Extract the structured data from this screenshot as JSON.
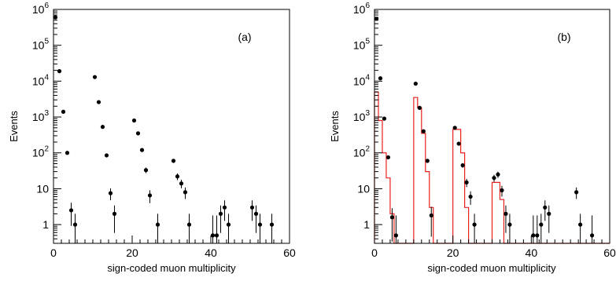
{
  "chart_data": [
    {
      "type": "scatter",
      "panel_label": "(a)",
      "xlabel": "sign-coded muon multiplicity",
      "ylabel": "Events",
      "xlim": [
        0,
        60
      ],
      "ylim": [
        0.3,
        1000000
      ],
      "yscale": "log",
      "x_ticks": [
        "0",
        "20",
        "40",
        "60"
      ],
      "y_ticks": [
        {
          "base": "1",
          "exp": ""
        },
        {
          "base": "10",
          "exp": ""
        },
        {
          "base": "10",
          "exp": "2"
        },
        {
          "base": "10",
          "exp": "3"
        },
        {
          "base": "10",
          "exp": "4"
        },
        {
          "base": "10",
          "exp": "5"
        },
        {
          "base": "10",
          "exp": "6"
        }
      ],
      "points_color": "#000000",
      "points": [
        {
          "x": 0.5,
          "y": 600000
        },
        {
          "x": 1.5,
          "y": 19000
        },
        {
          "x": 2.5,
          "y": 1400
        },
        {
          "x": 3.5,
          "y": 100
        },
        {
          "x": 4.5,
          "y": 2.5
        },
        {
          "x": 5.5,
          "y": 1
        },
        {
          "x": 10.5,
          "y": 13000
        },
        {
          "x": 11.5,
          "y": 2600
        },
        {
          "x": 12.5,
          "y": 530
        },
        {
          "x": 13.5,
          "y": 85
        },
        {
          "x": 14.5,
          "y": 7.5
        },
        {
          "x": 15.5,
          "y": 2
        },
        {
          "x": 20.5,
          "y": 800
        },
        {
          "x": 21.5,
          "y": 350
        },
        {
          "x": 22.5,
          "y": 120
        },
        {
          "x": 23.5,
          "y": 33
        },
        {
          "x": 24.5,
          "y": 6.5
        },
        {
          "x": 26.5,
          "y": 1
        },
        {
          "x": 30.5,
          "y": 60
        },
        {
          "x": 31.5,
          "y": 22
        },
        {
          "x": 32.5,
          "y": 14
        },
        {
          "x": 33.5,
          "y": 8
        },
        {
          "x": 34.5,
          "y": 1
        },
        {
          "x": 40.5,
          "y": 0.5
        },
        {
          "x": 41.5,
          "y": 0.5
        },
        {
          "x": 42.5,
          "y": 2
        },
        {
          "x": 43.5,
          "y": 3
        },
        {
          "x": 44.5,
          "y": 1
        },
        {
          "x": 50.5,
          "y": 3
        },
        {
          "x": 51.5,
          "y": 2
        },
        {
          "x": 52.5,
          "y": 1
        },
        {
          "x": 55.5,
          "y": 1
        }
      ]
    },
    {
      "type": "scatter",
      "panel_label": "(b)",
      "xlabel": "sign-coded muon multiplicity",
      "ylabel": "Events",
      "xlim": [
        0,
        60
      ],
      "ylim": [
        0.3,
        1000000
      ],
      "yscale": "log",
      "x_ticks": [
        "0",
        "20",
        "40",
        "60"
      ],
      "y_ticks": [
        {
          "base": "1",
          "exp": ""
        },
        {
          "base": "10",
          "exp": ""
        },
        {
          "base": "10",
          "exp": "2"
        },
        {
          "base": "10",
          "exp": "3"
        },
        {
          "base": "10",
          "exp": "4"
        },
        {
          "base": "10",
          "exp": "5"
        },
        {
          "base": "10",
          "exp": "6"
        }
      ],
      "points_color": "#000000",
      "histogram_color": "#e8201c",
      "points": [
        {
          "x": 0.5,
          "y": 550000
        },
        {
          "x": 1.5,
          "y": 12000
        },
        {
          "x": 2.5,
          "y": 900
        },
        {
          "x": 3.5,
          "y": 75
        },
        {
          "x": 4.5,
          "y": 1.6
        },
        {
          "x": 5.5,
          "y": 0.5
        },
        {
          "x": 10.5,
          "y": 8500
        },
        {
          "x": 11.5,
          "y": 1800
        },
        {
          "x": 12.5,
          "y": 400
        },
        {
          "x": 13.5,
          "y": 60
        },
        {
          "x": 14.5,
          "y": 1.8
        },
        {
          "x": 20.5,
          "y": 500
        },
        {
          "x": 21.5,
          "y": 180
        },
        {
          "x": 22.5,
          "y": 45
        },
        {
          "x": 23.5,
          "y": 15
        },
        {
          "x": 24.5,
          "y": 6
        },
        {
          "x": 25.5,
          "y": 1
        },
        {
          "x": 30.5,
          "y": 20
        },
        {
          "x": 31.5,
          "y": 25
        },
        {
          "x": 32.5,
          "y": 9
        },
        {
          "x": 33.5,
          "y": 2
        },
        {
          "x": 34.5,
          "y": 1
        },
        {
          "x": 40.5,
          "y": 0.5
        },
        {
          "x": 41.5,
          "y": 0.5
        },
        {
          "x": 42.5,
          "y": 1
        },
        {
          "x": 43.5,
          "y": 3
        },
        {
          "x": 44.5,
          "y": 2
        },
        {
          "x": 51.5,
          "y": 8
        },
        {
          "x": 52.5,
          "y": 1
        },
        {
          "x": 55.5,
          "y": 0.5
        }
      ],
      "histogram": [
        {
          "x0": 0,
          "x1": 1,
          "y": 5000
        },
        {
          "x0": 1,
          "x1": 2,
          "y": 800
        },
        {
          "x0": 2,
          "x1": 3,
          "y": 100
        },
        {
          "x0": 3,
          "x1": 4,
          "y": 20
        },
        {
          "x0": 4,
          "x1": 5,
          "y": 2
        },
        {
          "x0": 5,
          "x1": 10,
          "y": 0.3
        },
        {
          "x0": 10,
          "x1": 11,
          "y": 3500
        },
        {
          "x0": 11,
          "x1": 12,
          "y": 1800
        },
        {
          "x0": 12,
          "x1": 13,
          "y": 350
        },
        {
          "x0": 13,
          "x1": 14,
          "y": 30
        },
        {
          "x0": 14,
          "x1": 15,
          "y": 3
        },
        {
          "x0": 15,
          "x1": 20,
          "y": 0.3
        },
        {
          "x0": 20,
          "x1": 21,
          "y": 450
        },
        {
          "x0": 21,
          "x1": 22,
          "y": 450
        },
        {
          "x0": 22,
          "x1": 23,
          "y": 100
        },
        {
          "x0": 23,
          "x1": 24,
          "y": 3
        },
        {
          "x0": 24,
          "x1": 30,
          "y": 0.3
        },
        {
          "x0": 30,
          "x1": 31,
          "y": 15
        },
        {
          "x0": 31,
          "x1": 32,
          "y": 15
        },
        {
          "x0": 32,
          "x1": 33,
          "y": 5
        },
        {
          "x0": 33,
          "x1": 60,
          "y": 0.3
        }
      ]
    }
  ]
}
